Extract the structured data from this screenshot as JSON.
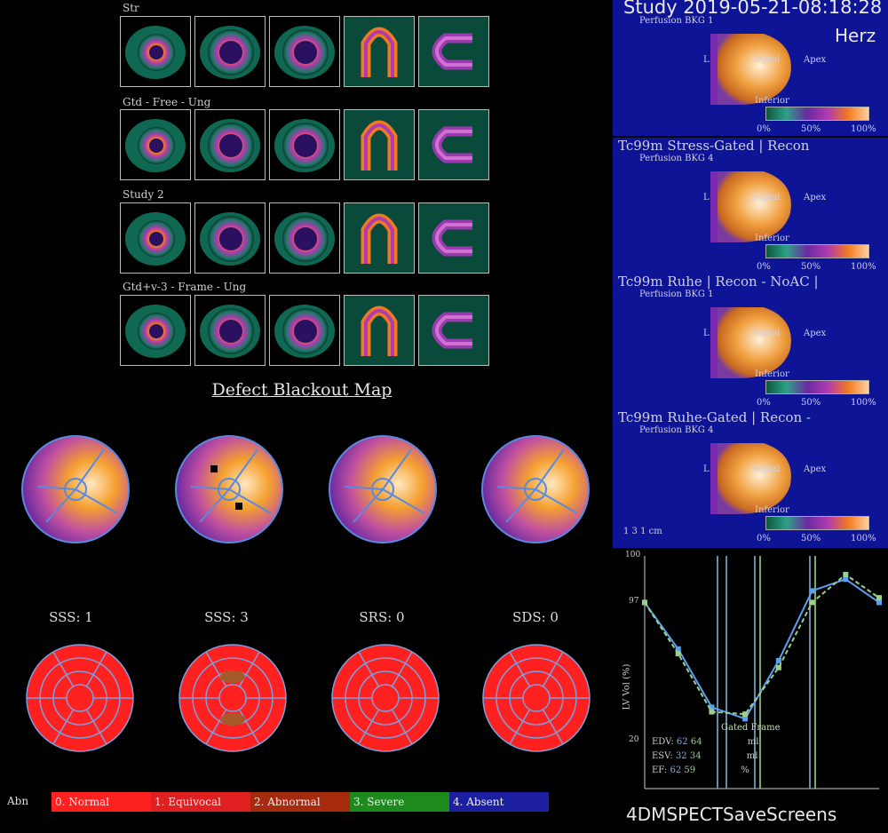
{
  "app": {
    "name": "4DMSPECT",
    "footer_action": "SaveScreens"
  },
  "slices": {
    "rows": [
      {
        "label": "Str"
      },
      {
        "label": "Gtd - Free - Ung"
      },
      {
        "label": "Study 2"
      },
      {
        "label": "Gtd+v-3 - Frame - Ung"
      }
    ]
  },
  "map_title": "Defect Blackout Map",
  "scores": [
    {
      "label": "SSS: 1"
    },
    {
      "label": "SSS: 3"
    },
    {
      "label": "SRS: 0"
    },
    {
      "label": "SDS: 0"
    }
  ],
  "severity_legend": {
    "title": "Abn",
    "items": [
      {
        "label": "0. Normal",
        "color": "#ff2020"
      },
      {
        "label": "1. Equivocal",
        "color": "#e02020"
      },
      {
        "label": "2. Abnormal",
        "color": "#a62a0e"
      },
      {
        "label": "3. Severe",
        "color": "#1c8a1c"
      },
      {
        "label": "4. Absent",
        "color": "#1c20a0"
      }
    ]
  },
  "right_panel": {
    "study": "Study 2019-05-21-08:18:28",
    "organ": "Herz",
    "volumes": [
      {
        "title": "",
        "subtitle": "Perfusion BKG 1"
      },
      {
        "title": "Tc99m Stress-Gated | Recon",
        "subtitle": "Perfusion BKG 4"
      },
      {
        "title": "Tc99m Ruhe | Recon - NoAC |",
        "subtitle": "Perfusion BKG 1"
      },
      {
        "title": "Tc99m Ruhe-Gated | Recon -",
        "subtitle": "Perfusion BKG 4"
      }
    ],
    "orientation": {
      "left": "L",
      "center": "Septal",
      "right": "Apex",
      "bottom": "Inferior"
    },
    "scale_labels": [
      "0%",
      "50%",
      "100%"
    ],
    "scale_bar": "1  3  1 cm"
  },
  "volume_curve": {
    "ylabel": "LV Vol (%)",
    "yticks": [
      "100",
      "97",
      "20"
    ],
    "annotation": "Gated Frame",
    "stats": [
      {
        "name": "EDV:",
        "v1": "62",
        "v2": "64",
        "unit": "ml"
      },
      {
        "name": "ESV:",
        "v1": "32",
        "v2": "34",
        "unit": "ml"
      },
      {
        "name": "EF:",
        "v1": "62",
        "v2": "59",
        "unit": "%"
      }
    ]
  },
  "chart_data": {
    "type": "line",
    "ylabel": "LV Vol (%)",
    "ylim": [
      0,
      100
    ],
    "x": [
      1,
      2,
      3,
      4,
      5,
      6,
      7,
      8
    ],
    "series": [
      {
        "values": [
          80,
          60,
          35,
          30,
          55,
          85,
          90,
          80
        ]
      },
      {
        "values": [
          80,
          58,
          33,
          32,
          52,
          80,
          92,
          82
        ]
      }
    ]
  },
  "colors": {
    "panel_blue": "#0d1496",
    "curve_a": "#5aa0f0",
    "curve_b": "#9ad08a"
  }
}
